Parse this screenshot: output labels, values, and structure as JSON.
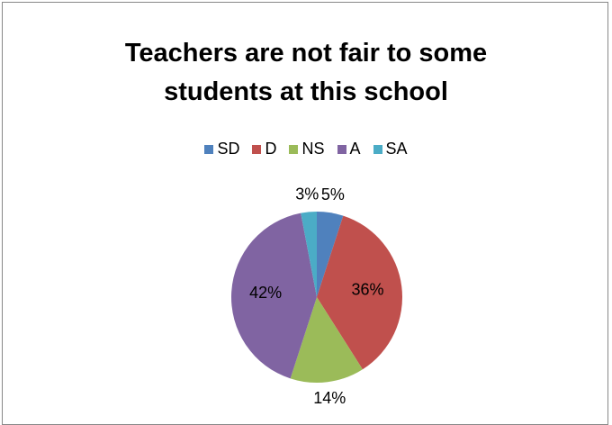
{
  "chart_data": {
    "type": "pie",
    "title": "Teachers are not fair to some students at this school",
    "categories": [
      "SD",
      "D",
      "NS",
      "A",
      "SA"
    ],
    "values": [
      5,
      36,
      14,
      42,
      3
    ],
    "value_labels": [
      "5%",
      "36%",
      "14%",
      "42%",
      "3%"
    ],
    "colors": [
      "#4f81bd",
      "#c0504d",
      "#9bbb59",
      "#8064a2",
      "#4bacc6"
    ],
    "legend": "top"
  }
}
